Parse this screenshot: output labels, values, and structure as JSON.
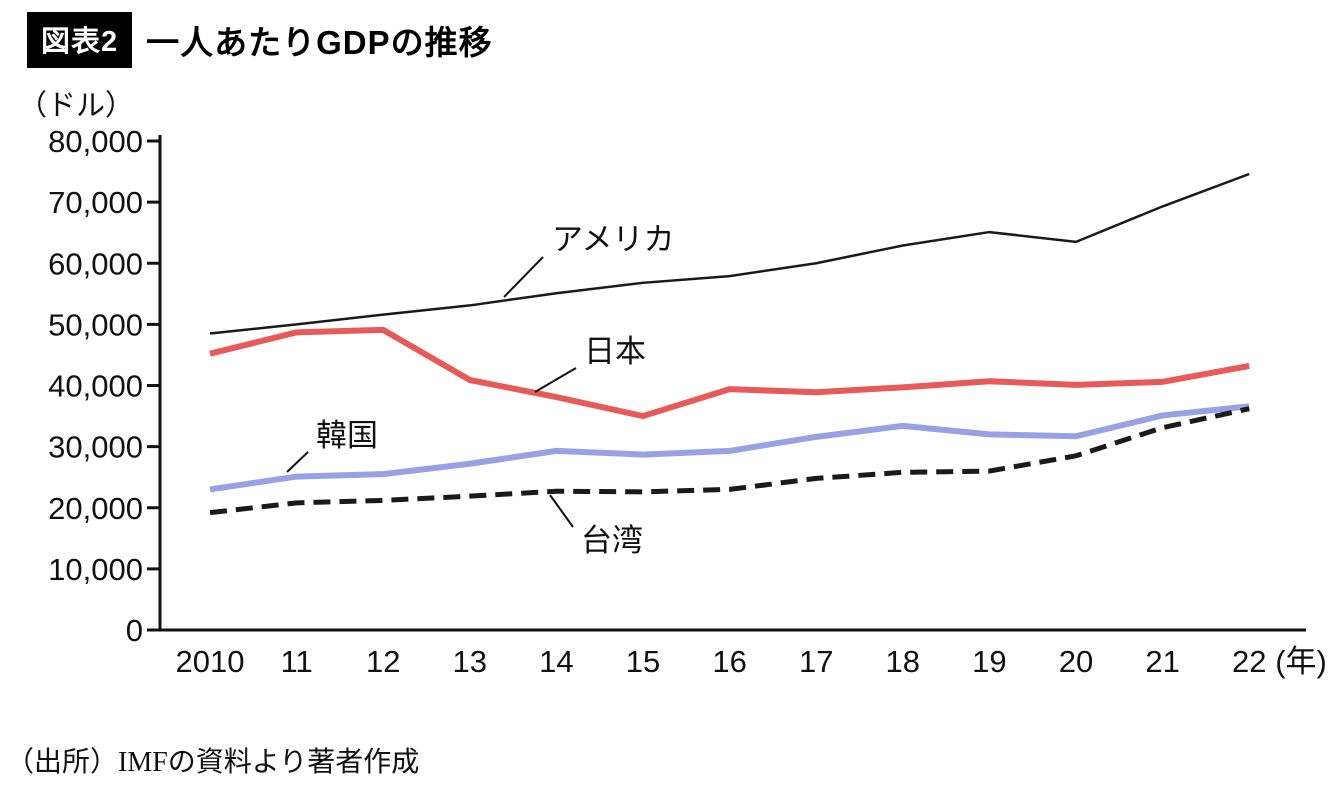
{
  "header": {
    "tag": "図表2",
    "title": "一人あたりGDPの推移"
  },
  "source": "（出所）IMFの資料より著者作成",
  "chart_data": {
    "type": "line",
    "title": "一人あたりGDPの推移",
    "unit_label": "（ドル）",
    "x_suffix": "(年)",
    "categories": [
      "2010",
      "11",
      "12",
      "13",
      "14",
      "15",
      "16",
      "17",
      "18",
      "19",
      "20",
      "21",
      "22"
    ],
    "ylim": [
      0,
      80000
    ],
    "ytick_step": 10000,
    "grid": false,
    "legend": "inline-annotations",
    "series": [
      {
        "id": "usa",
        "name": "アメリカ",
        "color": "#1a1a1a",
        "style": "solid-thin",
        "values": [
          48500,
          50000,
          51600,
          53100,
          55100,
          56800,
          57900,
          60000,
          62900,
          65100,
          63500,
          69300,
          74600
        ]
      },
      {
        "id": "japan",
        "name": "日本",
        "color": "#e85a5a",
        "style": "solid-thick",
        "values": [
          45200,
          48700,
          49100,
          40900,
          38100,
          35000,
          39400,
          38900,
          39700,
          40700,
          40100,
          40600,
          43200
        ]
      },
      {
        "id": "korea",
        "name": "韓国",
        "color": "#98a1e4",
        "style": "solid-thick",
        "values": [
          23000,
          25100,
          25500,
          27200,
          29300,
          28700,
          29300,
          31600,
          33400,
          32000,
          31700,
          35100,
          36600
        ]
      },
      {
        "id": "taiwan",
        "name": "台湾",
        "color": "#1a1a1a",
        "style": "dashed-thick",
        "values": [
          19200,
          20800,
          21200,
          21900,
          22700,
          22600,
          23000,
          24800,
          25800,
          26000,
          28500,
          33100,
          36200
        ]
      }
    ]
  }
}
